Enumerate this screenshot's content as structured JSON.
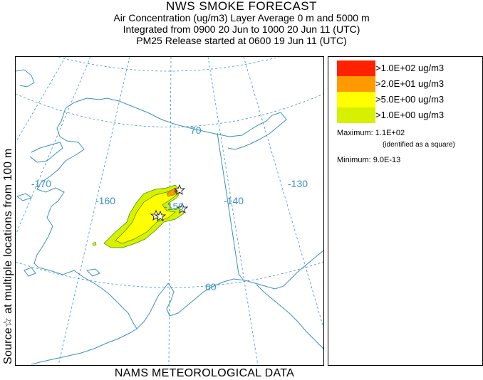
{
  "title": {
    "line1": "NWS SMOKE FORECAST",
    "line2": "Air Concentration (ug/m3) Layer Average    0 m and  5000 m",
    "line3": "Integrated from 0900 20 Jun to 1000 20 Jun 11 (UTC)",
    "line4": "PM25 Release started at 0600 19 Jun 11 (UTC)"
  },
  "side_label": "Source☆ at multiple locations from  100 m",
  "footer": "NAMS METEOROLOGICAL DATA",
  "map": {
    "longitude_labels": [
      "-170",
      "-160",
      "-150",
      "-140",
      "-130"
    ],
    "latitude_labels": [
      "70",
      "60"
    ],
    "colors": {
      "coastline": "#3a8fc9",
      "graticule": "#3a8fc9",
      "level_1": "#d6f000",
      "level_2": "#ffff00",
      "level_3": "#ff9900",
      "level_4": "#ff2200"
    }
  },
  "legend": {
    "items": [
      {
        "label": ">1.0E+02 ug/m3",
        "color": "#ff2200"
      },
      {
        "label": ">2.0E+01 ug/m3",
        "color": "#ff9900"
      },
      {
        "label": ">5.0E+00 ug/m3",
        "color": "#ffff00"
      },
      {
        "label": ">1.0E+00 ug/m3",
        "color": "#d6f000"
      }
    ],
    "maximum": "Maximum: 1.1E+02",
    "maximum_note": "(identified as a square)",
    "minimum": "Minimum: 9.0E-13"
  }
}
